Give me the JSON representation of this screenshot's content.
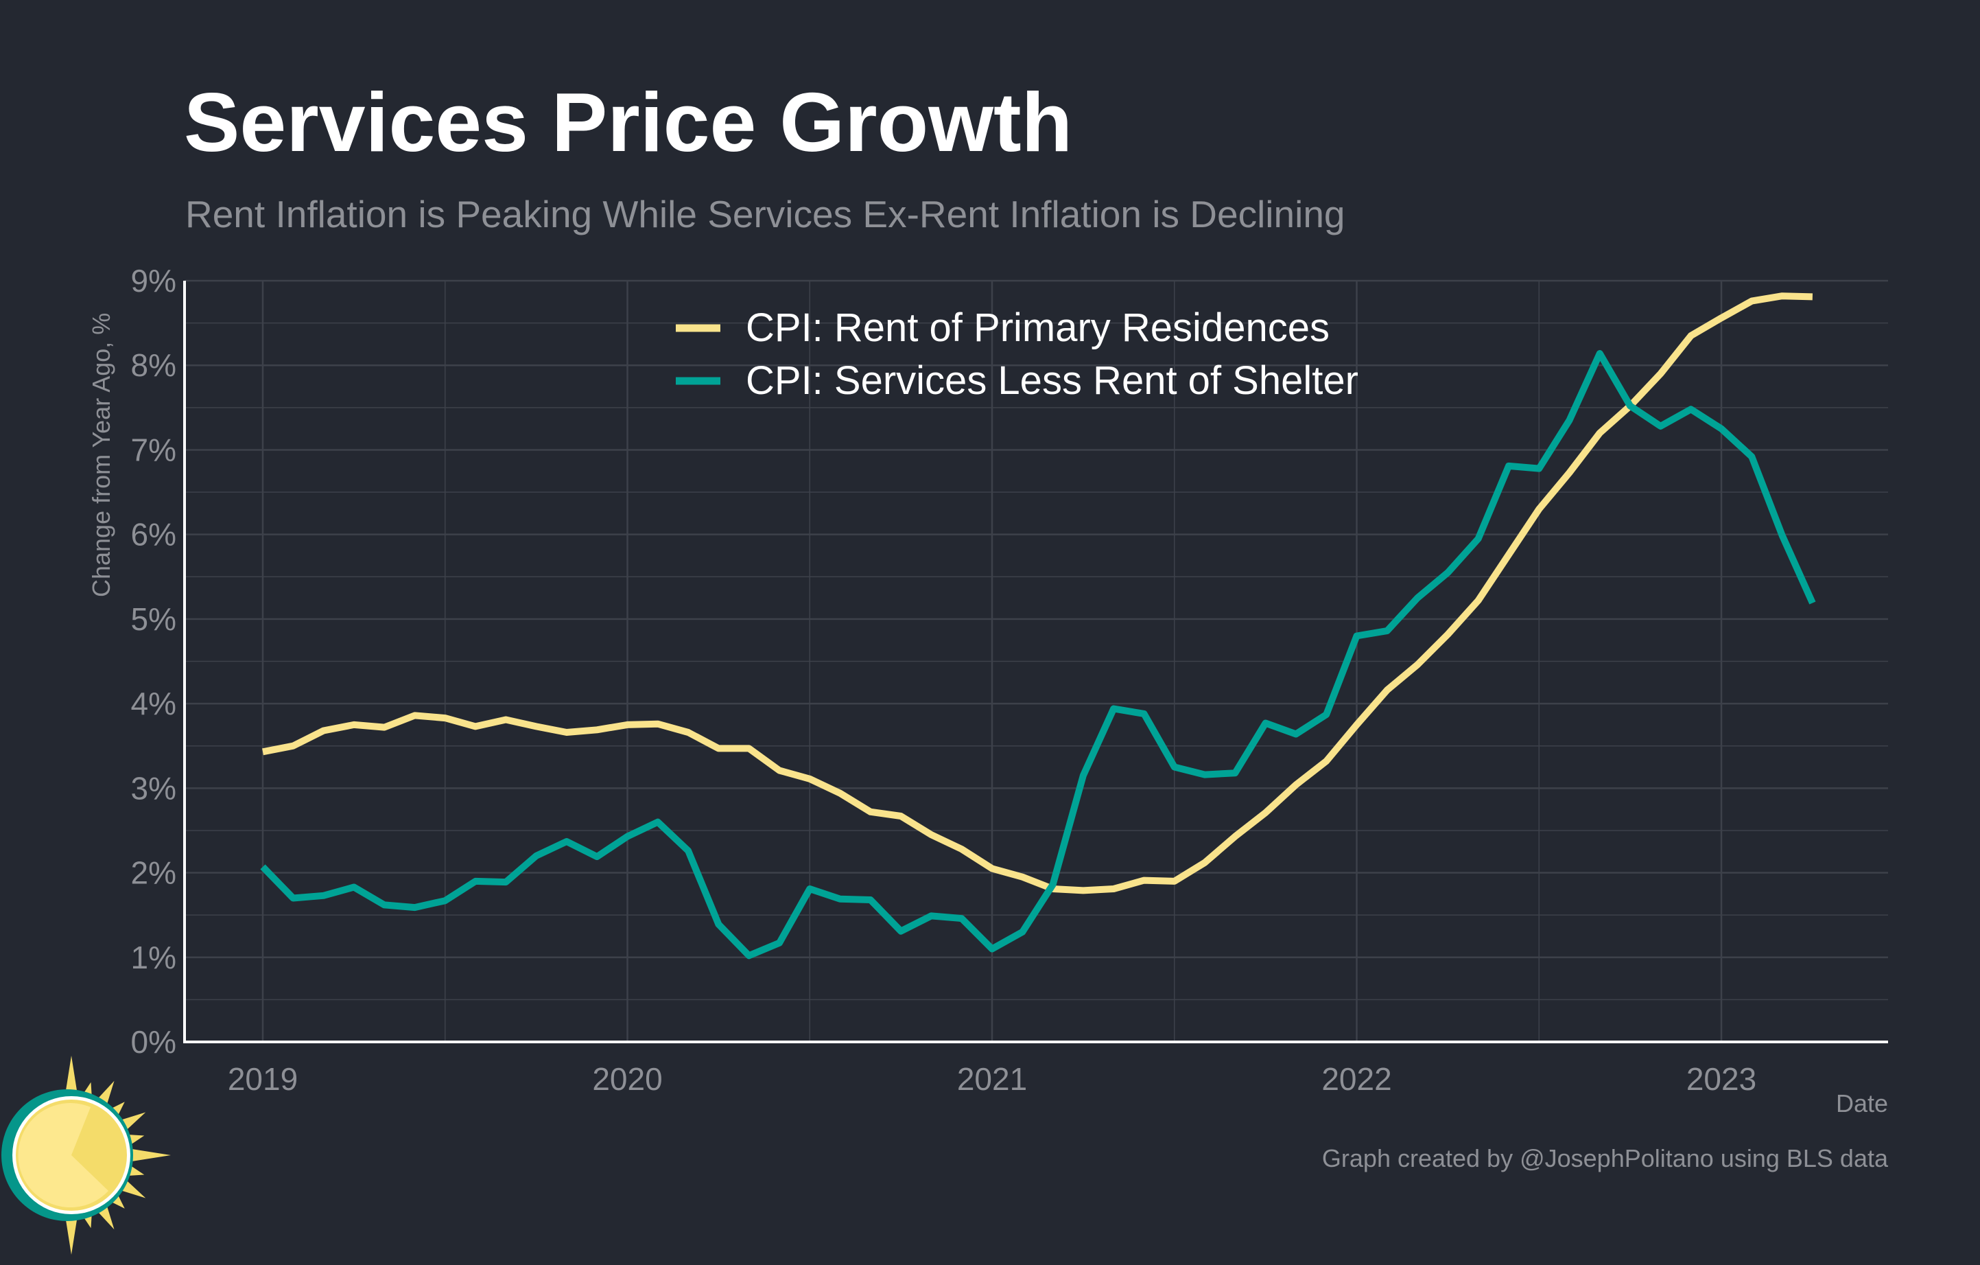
{
  "title": "Services Price Growth",
  "subtitle": "Rent Inflation is Peaking While Services Ex-Rent Inflation is Declining",
  "caption": "Graph created by @JosephPolitano using BLS data",
  "colors": {
    "background": "#242831",
    "rent": "#F9E38C",
    "services": "#00A396",
    "grid": "#3d414a",
    "axis": "#ffffff"
  },
  "chart_data": {
    "type": "line",
    "title": "Services Price Growth",
    "subtitle": "Rent Inflation is Peaking While Services Ex-Rent Inflation is Declining",
    "xlabel": "Date",
    "ylabel": "Change from Year Ago, %",
    "x_start": "2019-01",
    "x_end": "2023-04",
    "frequency": "monthly",
    "xticks": [
      "2019",
      "2020",
      "2021",
      "2022",
      "2023"
    ],
    "yticks": [
      "0%",
      "1%",
      "2%",
      "3%",
      "4%",
      "5%",
      "6%",
      "7%",
      "8%",
      "9%"
    ],
    "ylim": [
      0,
      9
    ],
    "grid": true,
    "legend": "top-center",
    "series": [
      {
        "name": "CPI: Rent of Primary Residences",
        "color": "#F9E38C",
        "values": [
          3.43,
          3.5,
          3.68,
          3.75,
          3.72,
          3.86,
          3.83,
          3.73,
          3.81,
          3.73,
          3.66,
          3.69,
          3.75,
          3.76,
          3.66,
          3.47,
          3.47,
          3.21,
          3.11,
          2.94,
          2.72,
          2.67,
          2.45,
          2.28,
          2.05,
          1.95,
          1.81,
          1.79,
          1.81,
          1.91,
          1.9,
          2.12,
          2.43,
          2.71,
          3.04,
          3.32,
          3.75,
          4.16,
          4.46,
          4.82,
          5.22,
          5.76,
          6.3,
          6.73,
          7.2,
          7.52,
          7.9,
          8.35,
          8.56,
          8.76,
          8.82,
          8.81
        ]
      },
      {
        "name": "CPI: Services Less Rent of Shelter",
        "color": "#00A396",
        "values": [
          2.07,
          1.7,
          1.73,
          1.83,
          1.62,
          1.59,
          1.67,
          1.9,
          1.89,
          2.2,
          2.37,
          2.19,
          2.43,
          2.6,
          2.26,
          1.39,
          1.02,
          1.17,
          1.81,
          1.69,
          1.68,
          1.31,
          1.49,
          1.46,
          1.1,
          1.3,
          1.86,
          3.15,
          3.94,
          3.88,
          3.25,
          3.16,
          3.18,
          3.77,
          3.64,
          3.87,
          4.8,
          4.86,
          5.25,
          5.55,
          5.95,
          6.81,
          6.78,
          7.35,
          8.14,
          7.52,
          7.28,
          7.48,
          7.25,
          6.92,
          5.99,
          5.19
        ]
      }
    ]
  }
}
